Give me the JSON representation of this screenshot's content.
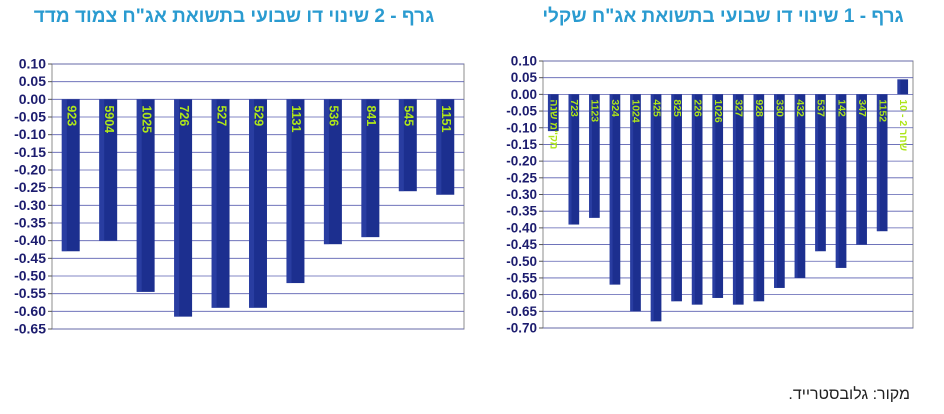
{
  "page": {
    "source": "מקור: גלובסטרייד."
  },
  "chart_data": [
    {
      "id": "left",
      "type": "bar",
      "title": "גרף - 2 שינוי דו שבועי בתשואת אג\"ח צמוד מדד",
      "categories": [
        "923",
        "5904",
        "1025",
        "726",
        "527",
        "529",
        "1131",
        "536",
        "841",
        "545",
        "1151"
      ],
      "values": [
        -0.43,
        -0.4,
        -0.545,
        -0.615,
        -0.59,
        -0.59,
        -0.52,
        -0.41,
        -0.39,
        -0.26,
        -0.27
      ],
      "ylim": [
        -0.65,
        0.1
      ],
      "ytick_step": 0.05,
      "grid": true,
      "bar_color": "#1c2f8f",
      "label_color": "#aee61a",
      "xlabel": "",
      "ylabel": ""
    },
    {
      "id": "right",
      "type": "bar",
      "title": "גרף - 1 שינוי דו שבועי בתשואת אג\"ח שקלי",
      "categories": [
        "מק\"מ שנה",
        "723",
        "1123",
        "324",
        "1024",
        "425",
        "825",
        "226",
        "1026",
        "327",
        "928",
        "330",
        "432",
        "537",
        "142",
        "347",
        "1152",
        "שחר 2 - 10"
      ],
      "values": [
        -0.11,
        -0.39,
        -0.37,
        -0.57,
        -0.65,
        -0.68,
        -0.62,
        -0.63,
        -0.61,
        -0.63,
        -0.62,
        -0.58,
        -0.55,
        -0.47,
        -0.52,
        -0.45,
        -0.41,
        0.045
      ],
      "ylim": [
        -0.7,
        0.1
      ],
      "ytick_step": 0.05,
      "grid": true,
      "bar_color": "#1c2f8f",
      "label_color": "#aee61a",
      "xlabel": "",
      "ylabel": ""
    }
  ]
}
